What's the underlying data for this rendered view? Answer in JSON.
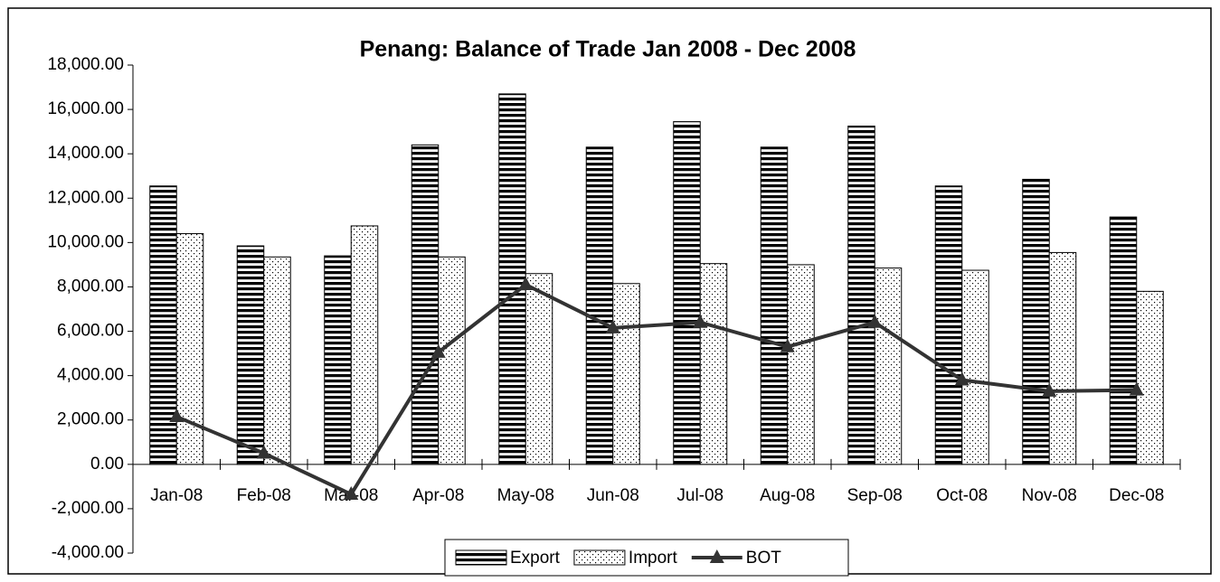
{
  "chart_data": {
    "type": "bar",
    "title": "Penang: Balance of Trade Jan 2008 - Dec 2008",
    "categories": [
      "Jan-08",
      "Feb-08",
      "Mar-08",
      "Apr-08",
      "May-08",
      "Jun-08",
      "Jul-08",
      "Aug-08",
      "Sep-08",
      "Oct-08",
      "Nov-08",
      "Dec-08"
    ],
    "series": [
      {
        "name": "Export",
        "type": "bar",
        "pattern": "stripes",
        "color": "#000000",
        "values": [
          12550,
          9850,
          9400,
          14400,
          16700,
          14300,
          15450,
          14300,
          15250,
          12550,
          12850,
          11150
        ]
      },
      {
        "name": "Import",
        "type": "bar",
        "pattern": "dots",
        "color": "#000000",
        "values": [
          10400,
          9350,
          10750,
          9350,
          8600,
          8150,
          9050,
          9000,
          8850,
          8750,
          9550,
          7800
        ]
      },
      {
        "name": "BOT",
        "type": "line",
        "marker": "triangle",
        "color": "#333333",
        "values": [
          2150,
          500,
          -1350,
          5050,
          8100,
          6150,
          6400,
          5300,
          6400,
          3800,
          3300,
          3350
        ]
      }
    ],
    "ylim": [
      -4000,
      18000
    ],
    "yticks": [
      {
        "value": -4000,
        "label": "-4,000.00"
      },
      {
        "value": -2000,
        "label": "-2,000.00"
      },
      {
        "value": 0,
        "label": "0.00"
      },
      {
        "value": 2000,
        "label": "2,000.00"
      },
      {
        "value": 4000,
        "label": "4,000.00"
      },
      {
        "value": 6000,
        "label": "6,000.00"
      },
      {
        "value": 8000,
        "label": "8,000.00"
      },
      {
        "value": 10000,
        "label": "10,000.00"
      },
      {
        "value": 12000,
        "label": "12,000.00"
      },
      {
        "value": 14000,
        "label": "14,000.00"
      },
      {
        "value": 16000,
        "label": "16,000.00"
      },
      {
        "value": 18000,
        "label": "18,000.00"
      }
    ],
    "grid": false,
    "legend": "bottom"
  }
}
